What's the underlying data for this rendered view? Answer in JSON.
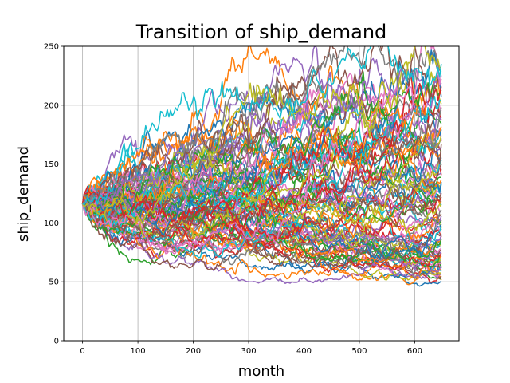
{
  "chart_data": {
    "type": "line",
    "title": "Transition of ship_demand",
    "xlabel": "month",
    "ylabel": "ship_demand",
    "xlim": [
      -34,
      680
    ],
    "ylim": [
      0,
      250
    ],
    "x_ticks": [
      0,
      100,
      200,
      300,
      400,
      500,
      600
    ],
    "y_ticks": [
      0,
      50,
      100,
      150,
      200,
      250
    ],
    "grid": true,
    "legend": "none",
    "simulation": {
      "start_value": 116,
      "start_month": 0,
      "end_month": 648,
      "num_paths": 100,
      "end_value_min": 47,
      "end_value_max": 250
    },
    "colors": [
      "#1f77b4",
      "#ff7f0e",
      "#2ca02c",
      "#d62728",
      "#9467bd",
      "#8c564b",
      "#e377c2",
      "#7f7f7f",
      "#bcbd22",
      "#17becf"
    ]
  }
}
